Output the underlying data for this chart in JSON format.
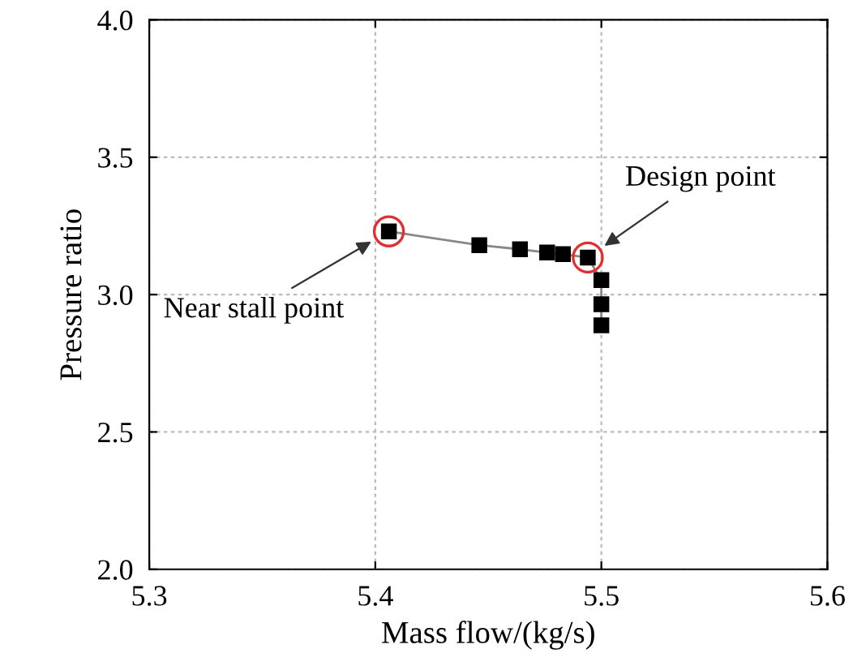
{
  "chart_data": {
    "type": "line",
    "xlabel": "Mass flow/(kg/s)",
    "ylabel": "Pressure ratio",
    "x": [
      5.406,
      5.446,
      5.464,
      5.476,
      5.483,
      5.494,
      5.5,
      5.5,
      5.5
    ],
    "series": [
      {
        "color": "#000000",
        "values": [
          3.23,
          3.18,
          3.165,
          3.153,
          3.147,
          3.135,
          3.053,
          2.965,
          2.888
        ]
      }
    ],
    "marker": "square",
    "grid": true,
    "xlim": [
      5.3,
      5.6
    ],
    "xticks": [
      5.3,
      5.4,
      5.5,
      5.6
    ],
    "ylim": [
      2.0,
      4.0
    ],
    "yticks": [
      {
        "value": 2,
        "label": "2.0"
      },
      2.5,
      {
        "value": 3,
        "label": "3.0"
      },
      3.5,
      {
        "value": 4,
        "label": "4.0"
      }
    ],
    "annotations": [
      {
        "text": "Near stall point",
        "x": 5.406,
        "y": 3.23
      },
      {
        "text": "Design point",
        "x": 5.494,
        "y": 3.135
      }
    ]
  }
}
